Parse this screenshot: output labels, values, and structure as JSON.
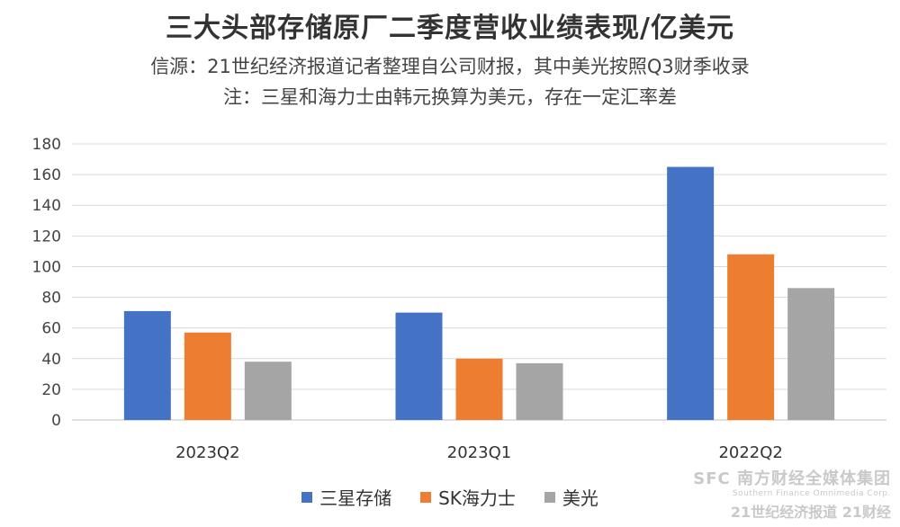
{
  "header": {
    "title": "三大头部存储原厂二季度营收业绩表现/亿美元",
    "subtitle_line1": "信源：21世纪经济报道记者整理自公司财报，其中美光按照Q3财季收录",
    "subtitle_line2": "注：三星和海力士由韩元换算为美元，存在一定汇率差"
  },
  "chart_data": {
    "type": "bar",
    "title": "三大头部存储原厂二季度营收业绩表现/亿美元",
    "categories": [
      "2023Q2",
      "2023Q1",
      "2022Q2"
    ],
    "series": [
      {
        "name": "三星存储",
        "values": [
          71,
          70,
          165
        ],
        "color": "#4472c4"
      },
      {
        "name": "SK海力士",
        "values": [
          57,
          40,
          108
        ],
        "color": "#ed7d31"
      },
      {
        "name": "美光",
        "values": [
          38,
          37,
          86
        ],
        "color": "#a5a5a5"
      }
    ],
    "ylim": [
      0,
      180
    ],
    "yticks": [
      0,
      20,
      40,
      60,
      80,
      100,
      120,
      140,
      160,
      180
    ],
    "grid": true,
    "legend_position": "bottom"
  },
  "watermark": {
    "line1": "SFC 南方财经全媒体集团",
    "line2": "Southern Finance Omnimedia Corp.",
    "line3": "21世纪经济报道  21财经"
  }
}
